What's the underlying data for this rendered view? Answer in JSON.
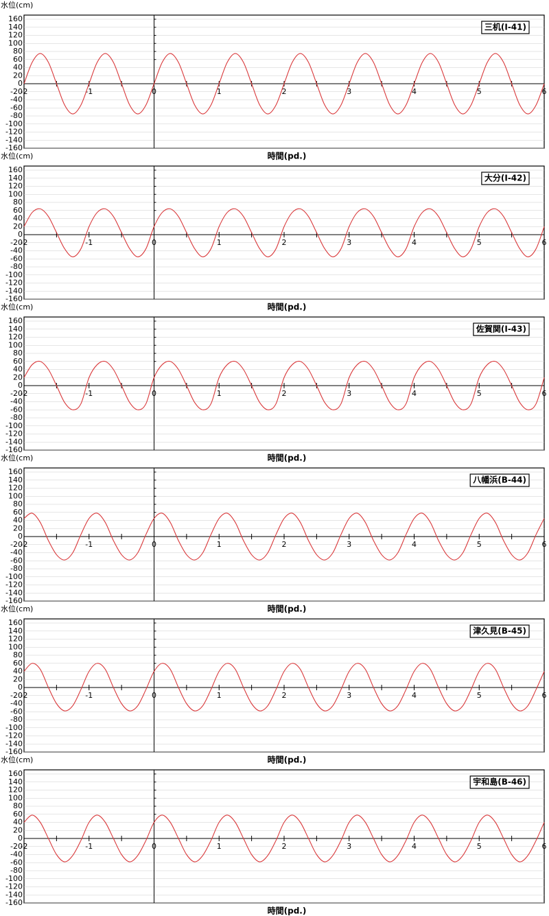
{
  "chart_data": [
    {
      "type": "line",
      "title": "三机(I-41)",
      "y_label": "水位(cm)",
      "x_label": "時間(pd.)",
      "x": [
        -2,
        -1.875,
        -1.75,
        -1.625,
        -1.5,
        -1.375,
        -1.25,
        -1.125,
        -1,
        -0.875,
        -0.75,
        -0.625,
        -0.5,
        -0.375,
        -0.25,
        -0.125,
        0,
        0.125,
        0.25,
        0.375,
        0.5,
        0.625,
        0.75,
        0.875,
        1,
        1.125,
        1.25,
        1.375,
        1.5,
        1.625,
        1.75,
        1.875,
        2,
        2.125,
        2.25,
        2.375,
        2.5,
        2.625,
        2.75,
        2.875,
        3,
        3.125,
        3.25,
        3.375,
        3.5,
        3.625,
        3.75,
        3.875,
        4,
        4.125,
        4.25,
        4.375,
        4.5,
        4.625,
        4.75,
        4.875,
        5,
        5.125,
        5.25,
        5.375,
        5.5,
        5.625,
        5.75,
        5.875,
        6
      ],
      "series": [
        {
          "color": "#d9383a",
          "values": [
            0,
            53,
            75,
            53,
            0,
            -53,
            -75,
            -53,
            0,
            53,
            75,
            53,
            0,
            -53,
            -75,
            -53,
            0,
            53,
            75,
            53,
            0,
            -53,
            -75,
            -53,
            0,
            53,
            75,
            53,
            0,
            -53,
            -75,
            -53,
            0,
            53,
            75,
            53,
            0,
            -53,
            -75,
            -53,
            0,
            53,
            75,
            53,
            0,
            -53,
            -75,
            -53,
            0,
            53,
            75,
            53,
            0,
            -53,
            -75,
            -53,
            0,
            53,
            75,
            53,
            0,
            -53,
            -75,
            -53,
            0
          ]
        }
      ],
      "xlim": [
        -2,
        6
      ],
      "xticks": [
        -2,
        -1,
        0,
        1,
        2,
        3,
        4,
        5,
        6
      ],
      "ylim": [
        -160,
        160
      ],
      "yticks": [
        -160,
        -140,
        -120,
        -100,
        -80,
        -60,
        -40,
        -20,
        0,
        20,
        40,
        60,
        80,
        100,
        120,
        140,
        160
      ],
      "grid": true
    },
    {
      "type": "line",
      "title": "大分(I-42)",
      "y_label": "水位(cm)",
      "x_label": "時間(pd.)",
      "x": [
        -2,
        -1.875,
        -1.75,
        -1.625,
        -1.5,
        -1.375,
        -1.25,
        -1.125,
        -1,
        -0.875,
        -0.75,
        -0.625,
        -0.5,
        -0.375,
        -0.25,
        -0.125,
        0,
        0.125,
        0.25,
        0.375,
        0.5,
        0.625,
        0.75,
        0.875,
        1,
        1.125,
        1.25,
        1.375,
        1.5,
        1.625,
        1.75,
        1.875,
        2,
        2.125,
        2.25,
        2.375,
        2.5,
        2.625,
        2.75,
        2.875,
        3,
        3.125,
        3.25,
        3.375,
        3.5,
        3.625,
        3.75,
        3.875,
        4,
        4.125,
        4.25,
        4.375,
        4.5,
        4.625,
        4.75,
        4.875,
        5,
        5.125,
        5.25,
        5.375,
        5.5,
        5.625,
        5.75,
        5.875,
        6
      ],
      "series": [
        {
          "color": "#d9383a",
          "values": [
            20,
            55,
            64,
            45,
            5,
            -35,
            -55,
            -35,
            20,
            55,
            64,
            45,
            5,
            -35,
            -55,
            -35,
            20,
            55,
            64,
            45,
            5,
            -35,
            -55,
            -35,
            20,
            55,
            64,
            45,
            5,
            -35,
            -55,
            -35,
            20,
            55,
            64,
            45,
            5,
            -35,
            -55,
            -35,
            20,
            55,
            64,
            45,
            5,
            -35,
            -55,
            -35,
            20,
            55,
            64,
            45,
            5,
            -35,
            -55,
            -35,
            20,
            55,
            64,
            45,
            5,
            -35,
            -55,
            -35,
            20
          ]
        }
      ],
      "xlim": [
        -2,
        6
      ],
      "xticks": [
        -2,
        -1,
        0,
        1,
        2,
        3,
        4,
        5,
        6
      ],
      "ylim": [
        -160,
        160
      ],
      "yticks": [
        -160,
        -140,
        -120,
        -100,
        -80,
        -60,
        -40,
        -20,
        0,
        20,
        40,
        60,
        80,
        100,
        120,
        140,
        160
      ],
      "grid": true
    },
    {
      "type": "line",
      "title": "佐賀関(I-43)",
      "y_label": "水位(cm)",
      "x_label": "時間(pd.)",
      "x": [
        -2,
        -1.875,
        -1.75,
        -1.625,
        -1.5,
        -1.375,
        -1.25,
        -1.125,
        -1,
        -0.875,
        -0.75,
        -0.625,
        -0.5,
        -0.375,
        -0.25,
        -0.125,
        0,
        0.125,
        0.25,
        0.375,
        0.5,
        0.625,
        0.75,
        0.875,
        1,
        1.125,
        1.25,
        1.375,
        1.5,
        1.625,
        1.75,
        1.875,
        2,
        2.125,
        2.25,
        2.375,
        2.5,
        2.625,
        2.75,
        2.875,
        3,
        3.125,
        3.25,
        3.375,
        3.5,
        3.625,
        3.75,
        3.875,
        4,
        4.125,
        4.25,
        4.375,
        4.5,
        4.625,
        4.75,
        4.875,
        5,
        5.125,
        5.25,
        5.375,
        5.5,
        5.625,
        5.75,
        5.875,
        6
      ],
      "series": [
        {
          "color": "#d9383a",
          "values": [
            20,
            52,
            60,
            40,
            0,
            -42,
            -60,
            -45,
            20,
            52,
            60,
            40,
            0,
            -42,
            -60,
            -45,
            20,
            52,
            60,
            40,
            0,
            -42,
            -60,
            -45,
            20,
            52,
            60,
            40,
            0,
            -42,
            -60,
            -45,
            20,
            52,
            60,
            40,
            0,
            -42,
            -60,
            -45,
            20,
            52,
            60,
            40,
            0,
            -42,
            -60,
            -45,
            20,
            52,
            60,
            40,
            0,
            -42,
            -60,
            -45,
            20,
            52,
            60,
            40,
            0,
            -42,
            -60,
            -45,
            20
          ]
        }
      ],
      "xlim": [
        -2,
        6
      ],
      "xticks": [
        -2,
        -1,
        0,
        1,
        2,
        3,
        4,
        5,
        6
      ],
      "ylim": [
        -160,
        160
      ],
      "yticks": [
        -160,
        -140,
        -120,
        -100,
        -80,
        -60,
        -40,
        -20,
        0,
        20,
        40,
        60,
        80,
        100,
        120,
        140,
        160
      ],
      "grid": true
    },
    {
      "type": "line",
      "title": "八幡浜(B-44)",
      "y_label": "水位(cm)",
      "x_label": "時間(pd.)",
      "x": [
        -2,
        -1.875,
        -1.75,
        -1.625,
        -1.5,
        -1.375,
        -1.25,
        -1.125,
        -1,
        -0.875,
        -0.75,
        -0.625,
        -0.5,
        -0.375,
        -0.25,
        -0.125,
        0,
        0.125,
        0.25,
        0.375,
        0.5,
        0.625,
        0.75,
        0.875,
        1,
        1.125,
        1.25,
        1.375,
        1.5,
        1.625,
        1.75,
        1.875,
        2,
        2.125,
        2.25,
        2.375,
        2.5,
        2.625,
        2.75,
        2.875,
        3,
        3.125,
        3.25,
        3.375,
        3.5,
        3.625,
        3.75,
        3.875,
        4,
        4.125,
        4.25,
        4.375,
        4.5,
        4.625,
        4.75,
        4.875,
        5,
        5.125,
        5.25,
        5.375,
        5.5,
        5.625,
        5.75,
        5.875,
        6
      ],
      "series": [
        {
          "color": "#d9383a",
          "values": [
            45,
            58,
            35,
            -10,
            -45,
            -58,
            -40,
            5,
            45,
            58,
            35,
            -10,
            -45,
            -58,
            -40,
            5,
            45,
            58,
            35,
            -10,
            -45,
            -58,
            -40,
            5,
            45,
            58,
            35,
            -10,
            -45,
            -58,
            -40,
            5,
            45,
            58,
            35,
            -10,
            -45,
            -58,
            -40,
            5,
            45,
            58,
            35,
            -10,
            -45,
            -58,
            -40,
            5,
            45,
            58,
            35,
            -10,
            -45,
            -58,
            -40,
            5,
            45,
            58,
            35,
            -10,
            -45,
            -58,
            -40,
            5,
            45
          ]
        }
      ],
      "xlim": [
        -2,
        6
      ],
      "xticks": [
        -2,
        -1,
        0,
        1,
        2,
        3,
        4,
        5,
        6
      ],
      "ylim": [
        -160,
        160
      ],
      "yticks": [
        -160,
        -140,
        -120,
        -100,
        -80,
        -60,
        -40,
        -20,
        0,
        20,
        40,
        60,
        80,
        100,
        120,
        140,
        160
      ],
      "grid": true
    },
    {
      "type": "line",
      "title": "津久見(B-45)",
      "y_label": "水位(cm)",
      "x_label": "時間(pd.)",
      "x": [
        -2,
        -1.875,
        -1.75,
        -1.625,
        -1.5,
        -1.375,
        -1.25,
        -1.125,
        -1,
        -0.875,
        -0.75,
        -0.625,
        -0.5,
        -0.375,
        -0.25,
        -0.125,
        0,
        0.125,
        0.25,
        0.375,
        0.5,
        0.625,
        0.75,
        0.875,
        1,
        1.125,
        1.25,
        1.375,
        1.5,
        1.625,
        1.75,
        1.875,
        2,
        2.125,
        2.25,
        2.375,
        2.5,
        2.625,
        2.75,
        2.875,
        3,
        3.125,
        3.25,
        3.375,
        3.5,
        3.625,
        3.75,
        3.875,
        4,
        4.125,
        4.25,
        4.375,
        4.5,
        4.625,
        4.75,
        4.875,
        5,
        5.125,
        5.25,
        5.375,
        5.5,
        5.625,
        5.75,
        5.875,
        6
      ],
      "series": [
        {
          "color": "#d9383a",
          "values": [
            40,
            60,
            45,
            0,
            -40,
            -58,
            -45,
            -5,
            40,
            60,
            45,
            0,
            -40,
            -58,
            -45,
            -5,
            40,
            60,
            45,
            0,
            -40,
            -58,
            -45,
            -5,
            40,
            60,
            45,
            0,
            -40,
            -58,
            -45,
            -5,
            40,
            60,
            45,
            0,
            -40,
            -58,
            -45,
            -5,
            40,
            60,
            45,
            0,
            -40,
            -58,
            -45,
            -5,
            40,
            60,
            45,
            0,
            -40,
            -58,
            -45,
            -5,
            40,
            60,
            45,
            0,
            -40,
            -58,
            -45,
            -5,
            40
          ]
        }
      ],
      "xlim": [
        -2,
        6
      ],
      "xticks": [
        -2,
        -1,
        0,
        1,
        2,
        3,
        4,
        5,
        6
      ],
      "ylim": [
        -160,
        160
      ],
      "yticks": [
        -160,
        -140,
        -120,
        -100,
        -80,
        -60,
        -40,
        -20,
        0,
        20,
        40,
        60,
        80,
        100,
        120,
        140,
        160
      ],
      "grid": true
    },
    {
      "type": "line",
      "title": "宇和島(B-46)",
      "y_label": "水位(cm)",
      "x_label": "時間(pd.)",
      "x": [
        -2,
        -1.875,
        -1.75,
        -1.625,
        -1.5,
        -1.375,
        -1.25,
        -1.125,
        -1,
        -0.875,
        -0.75,
        -0.625,
        -0.5,
        -0.375,
        -0.25,
        -0.125,
        0,
        0.125,
        0.25,
        0.375,
        0.5,
        0.625,
        0.75,
        0.875,
        1,
        1.125,
        1.25,
        1.375,
        1.5,
        1.625,
        1.75,
        1.875,
        2,
        2.125,
        2.25,
        2.375,
        2.5,
        2.625,
        2.75,
        2.875,
        3,
        3.125,
        3.25,
        3.375,
        3.5,
        3.625,
        3.75,
        3.875,
        4,
        4.125,
        4.25,
        4.375,
        4.5,
        4.625,
        4.75,
        4.875,
        5,
        5.125,
        5.25,
        5.375,
        5.5,
        5.625,
        5.75,
        5.875,
        6
      ],
      "series": [
        {
          "color": "#d9383a",
          "values": [
            40,
            58,
            40,
            0,
            -40,
            -58,
            -42,
            -5,
            40,
            58,
            40,
            0,
            -40,
            -58,
            -42,
            -5,
            40,
            58,
            40,
            0,
            -40,
            -58,
            -42,
            -5,
            40,
            58,
            40,
            0,
            -40,
            -58,
            -42,
            -5,
            40,
            58,
            40,
            0,
            -40,
            -58,
            -42,
            -5,
            40,
            58,
            40,
            0,
            -40,
            -58,
            -42,
            -5,
            40,
            58,
            40,
            0,
            -40,
            -58,
            -42,
            -5,
            40,
            58,
            40,
            0,
            -40,
            -58,
            -42,
            -5,
            40
          ]
        }
      ],
      "xlim": [
        -2,
        6
      ],
      "xticks": [
        -2,
        -1,
        0,
        1,
        2,
        3,
        4,
        5,
        6
      ],
      "ylim": [
        -160,
        160
      ],
      "yticks": [
        -160,
        -140,
        -120,
        -100,
        -80,
        -60,
        -40,
        -20,
        0,
        20,
        40,
        60,
        80,
        100,
        120,
        140,
        160
      ],
      "grid": true
    }
  ]
}
